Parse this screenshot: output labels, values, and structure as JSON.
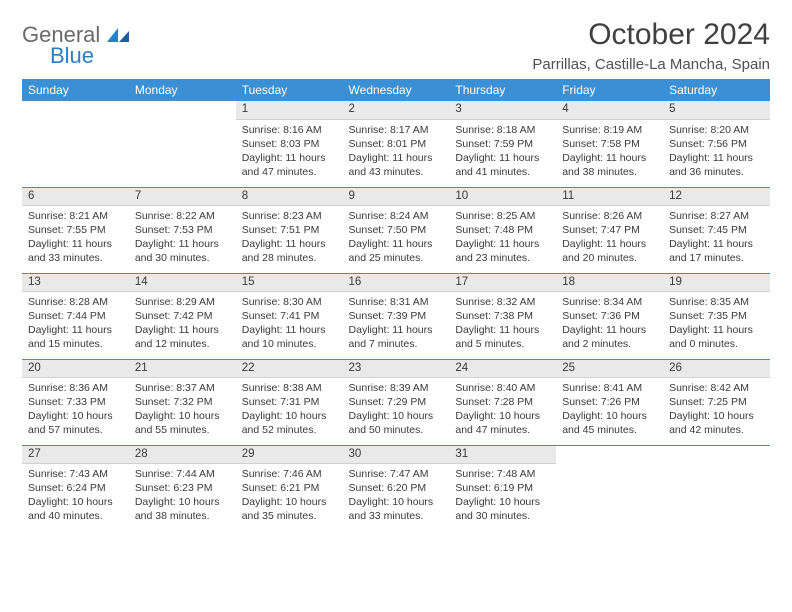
{
  "header": {
    "logo_part1": "General",
    "logo_part2": "Blue",
    "month_title": "October 2024",
    "location": "Parrillas, Castille-La Mancha, Spain"
  },
  "colors": {
    "header_bg": "#3b8fd4",
    "daynum_bg": "#e9e9e9",
    "divider": "#3b8fd4",
    "text": "#3a3a3a",
    "logo_gray": "#6a6a6a",
    "logo_blue": "#2a7ec5"
  },
  "weekdays": [
    "Sunday",
    "Monday",
    "Tuesday",
    "Wednesday",
    "Thursday",
    "Friday",
    "Saturday"
  ],
  "weeks": [
    [
      null,
      null,
      {
        "n": "1",
        "sr": "Sunrise: 8:16 AM",
        "ss": "Sunset: 8:03 PM",
        "d1": "Daylight: 11 hours",
        "d2": "and 47 minutes."
      },
      {
        "n": "2",
        "sr": "Sunrise: 8:17 AM",
        "ss": "Sunset: 8:01 PM",
        "d1": "Daylight: 11 hours",
        "d2": "and 43 minutes."
      },
      {
        "n": "3",
        "sr": "Sunrise: 8:18 AM",
        "ss": "Sunset: 7:59 PM",
        "d1": "Daylight: 11 hours",
        "d2": "and 41 minutes."
      },
      {
        "n": "4",
        "sr": "Sunrise: 8:19 AM",
        "ss": "Sunset: 7:58 PM",
        "d1": "Daylight: 11 hours",
        "d2": "and 38 minutes."
      },
      {
        "n": "5",
        "sr": "Sunrise: 8:20 AM",
        "ss": "Sunset: 7:56 PM",
        "d1": "Daylight: 11 hours",
        "d2": "and 36 minutes."
      }
    ],
    [
      {
        "n": "6",
        "sr": "Sunrise: 8:21 AM",
        "ss": "Sunset: 7:55 PM",
        "d1": "Daylight: 11 hours",
        "d2": "and 33 minutes."
      },
      {
        "n": "7",
        "sr": "Sunrise: 8:22 AM",
        "ss": "Sunset: 7:53 PM",
        "d1": "Daylight: 11 hours",
        "d2": "and 30 minutes."
      },
      {
        "n": "8",
        "sr": "Sunrise: 8:23 AM",
        "ss": "Sunset: 7:51 PM",
        "d1": "Daylight: 11 hours",
        "d2": "and 28 minutes."
      },
      {
        "n": "9",
        "sr": "Sunrise: 8:24 AM",
        "ss": "Sunset: 7:50 PM",
        "d1": "Daylight: 11 hours",
        "d2": "and 25 minutes."
      },
      {
        "n": "10",
        "sr": "Sunrise: 8:25 AM",
        "ss": "Sunset: 7:48 PM",
        "d1": "Daylight: 11 hours",
        "d2": "and 23 minutes."
      },
      {
        "n": "11",
        "sr": "Sunrise: 8:26 AM",
        "ss": "Sunset: 7:47 PM",
        "d1": "Daylight: 11 hours",
        "d2": "and 20 minutes."
      },
      {
        "n": "12",
        "sr": "Sunrise: 8:27 AM",
        "ss": "Sunset: 7:45 PM",
        "d1": "Daylight: 11 hours",
        "d2": "and 17 minutes."
      }
    ],
    [
      {
        "n": "13",
        "sr": "Sunrise: 8:28 AM",
        "ss": "Sunset: 7:44 PM",
        "d1": "Daylight: 11 hours",
        "d2": "and 15 minutes."
      },
      {
        "n": "14",
        "sr": "Sunrise: 8:29 AM",
        "ss": "Sunset: 7:42 PM",
        "d1": "Daylight: 11 hours",
        "d2": "and 12 minutes."
      },
      {
        "n": "15",
        "sr": "Sunrise: 8:30 AM",
        "ss": "Sunset: 7:41 PM",
        "d1": "Daylight: 11 hours",
        "d2": "and 10 minutes."
      },
      {
        "n": "16",
        "sr": "Sunrise: 8:31 AM",
        "ss": "Sunset: 7:39 PM",
        "d1": "Daylight: 11 hours",
        "d2": "and 7 minutes."
      },
      {
        "n": "17",
        "sr": "Sunrise: 8:32 AM",
        "ss": "Sunset: 7:38 PM",
        "d1": "Daylight: 11 hours",
        "d2": "and 5 minutes."
      },
      {
        "n": "18",
        "sr": "Sunrise: 8:34 AM",
        "ss": "Sunset: 7:36 PM",
        "d1": "Daylight: 11 hours",
        "d2": "and 2 minutes."
      },
      {
        "n": "19",
        "sr": "Sunrise: 8:35 AM",
        "ss": "Sunset: 7:35 PM",
        "d1": "Daylight: 11 hours",
        "d2": "and 0 minutes."
      }
    ],
    [
      {
        "n": "20",
        "sr": "Sunrise: 8:36 AM",
        "ss": "Sunset: 7:33 PM",
        "d1": "Daylight: 10 hours",
        "d2": "and 57 minutes."
      },
      {
        "n": "21",
        "sr": "Sunrise: 8:37 AM",
        "ss": "Sunset: 7:32 PM",
        "d1": "Daylight: 10 hours",
        "d2": "and 55 minutes."
      },
      {
        "n": "22",
        "sr": "Sunrise: 8:38 AM",
        "ss": "Sunset: 7:31 PM",
        "d1": "Daylight: 10 hours",
        "d2": "and 52 minutes."
      },
      {
        "n": "23",
        "sr": "Sunrise: 8:39 AM",
        "ss": "Sunset: 7:29 PM",
        "d1": "Daylight: 10 hours",
        "d2": "and 50 minutes."
      },
      {
        "n": "24",
        "sr": "Sunrise: 8:40 AM",
        "ss": "Sunset: 7:28 PM",
        "d1": "Daylight: 10 hours",
        "d2": "and 47 minutes."
      },
      {
        "n": "25",
        "sr": "Sunrise: 8:41 AM",
        "ss": "Sunset: 7:26 PM",
        "d1": "Daylight: 10 hours",
        "d2": "and 45 minutes."
      },
      {
        "n": "26",
        "sr": "Sunrise: 8:42 AM",
        "ss": "Sunset: 7:25 PM",
        "d1": "Daylight: 10 hours",
        "d2": "and 42 minutes."
      }
    ],
    [
      {
        "n": "27",
        "sr": "Sunrise: 7:43 AM",
        "ss": "Sunset: 6:24 PM",
        "d1": "Daylight: 10 hours",
        "d2": "and 40 minutes."
      },
      {
        "n": "28",
        "sr": "Sunrise: 7:44 AM",
        "ss": "Sunset: 6:23 PM",
        "d1": "Daylight: 10 hours",
        "d2": "and 38 minutes."
      },
      {
        "n": "29",
        "sr": "Sunrise: 7:46 AM",
        "ss": "Sunset: 6:21 PM",
        "d1": "Daylight: 10 hours",
        "d2": "and 35 minutes."
      },
      {
        "n": "30",
        "sr": "Sunrise: 7:47 AM",
        "ss": "Sunset: 6:20 PM",
        "d1": "Daylight: 10 hours",
        "d2": "and 33 minutes."
      },
      {
        "n": "31",
        "sr": "Sunrise: 7:48 AM",
        "ss": "Sunset: 6:19 PM",
        "d1": "Daylight: 10 hours",
        "d2": "and 30 minutes."
      },
      null,
      null
    ]
  ]
}
